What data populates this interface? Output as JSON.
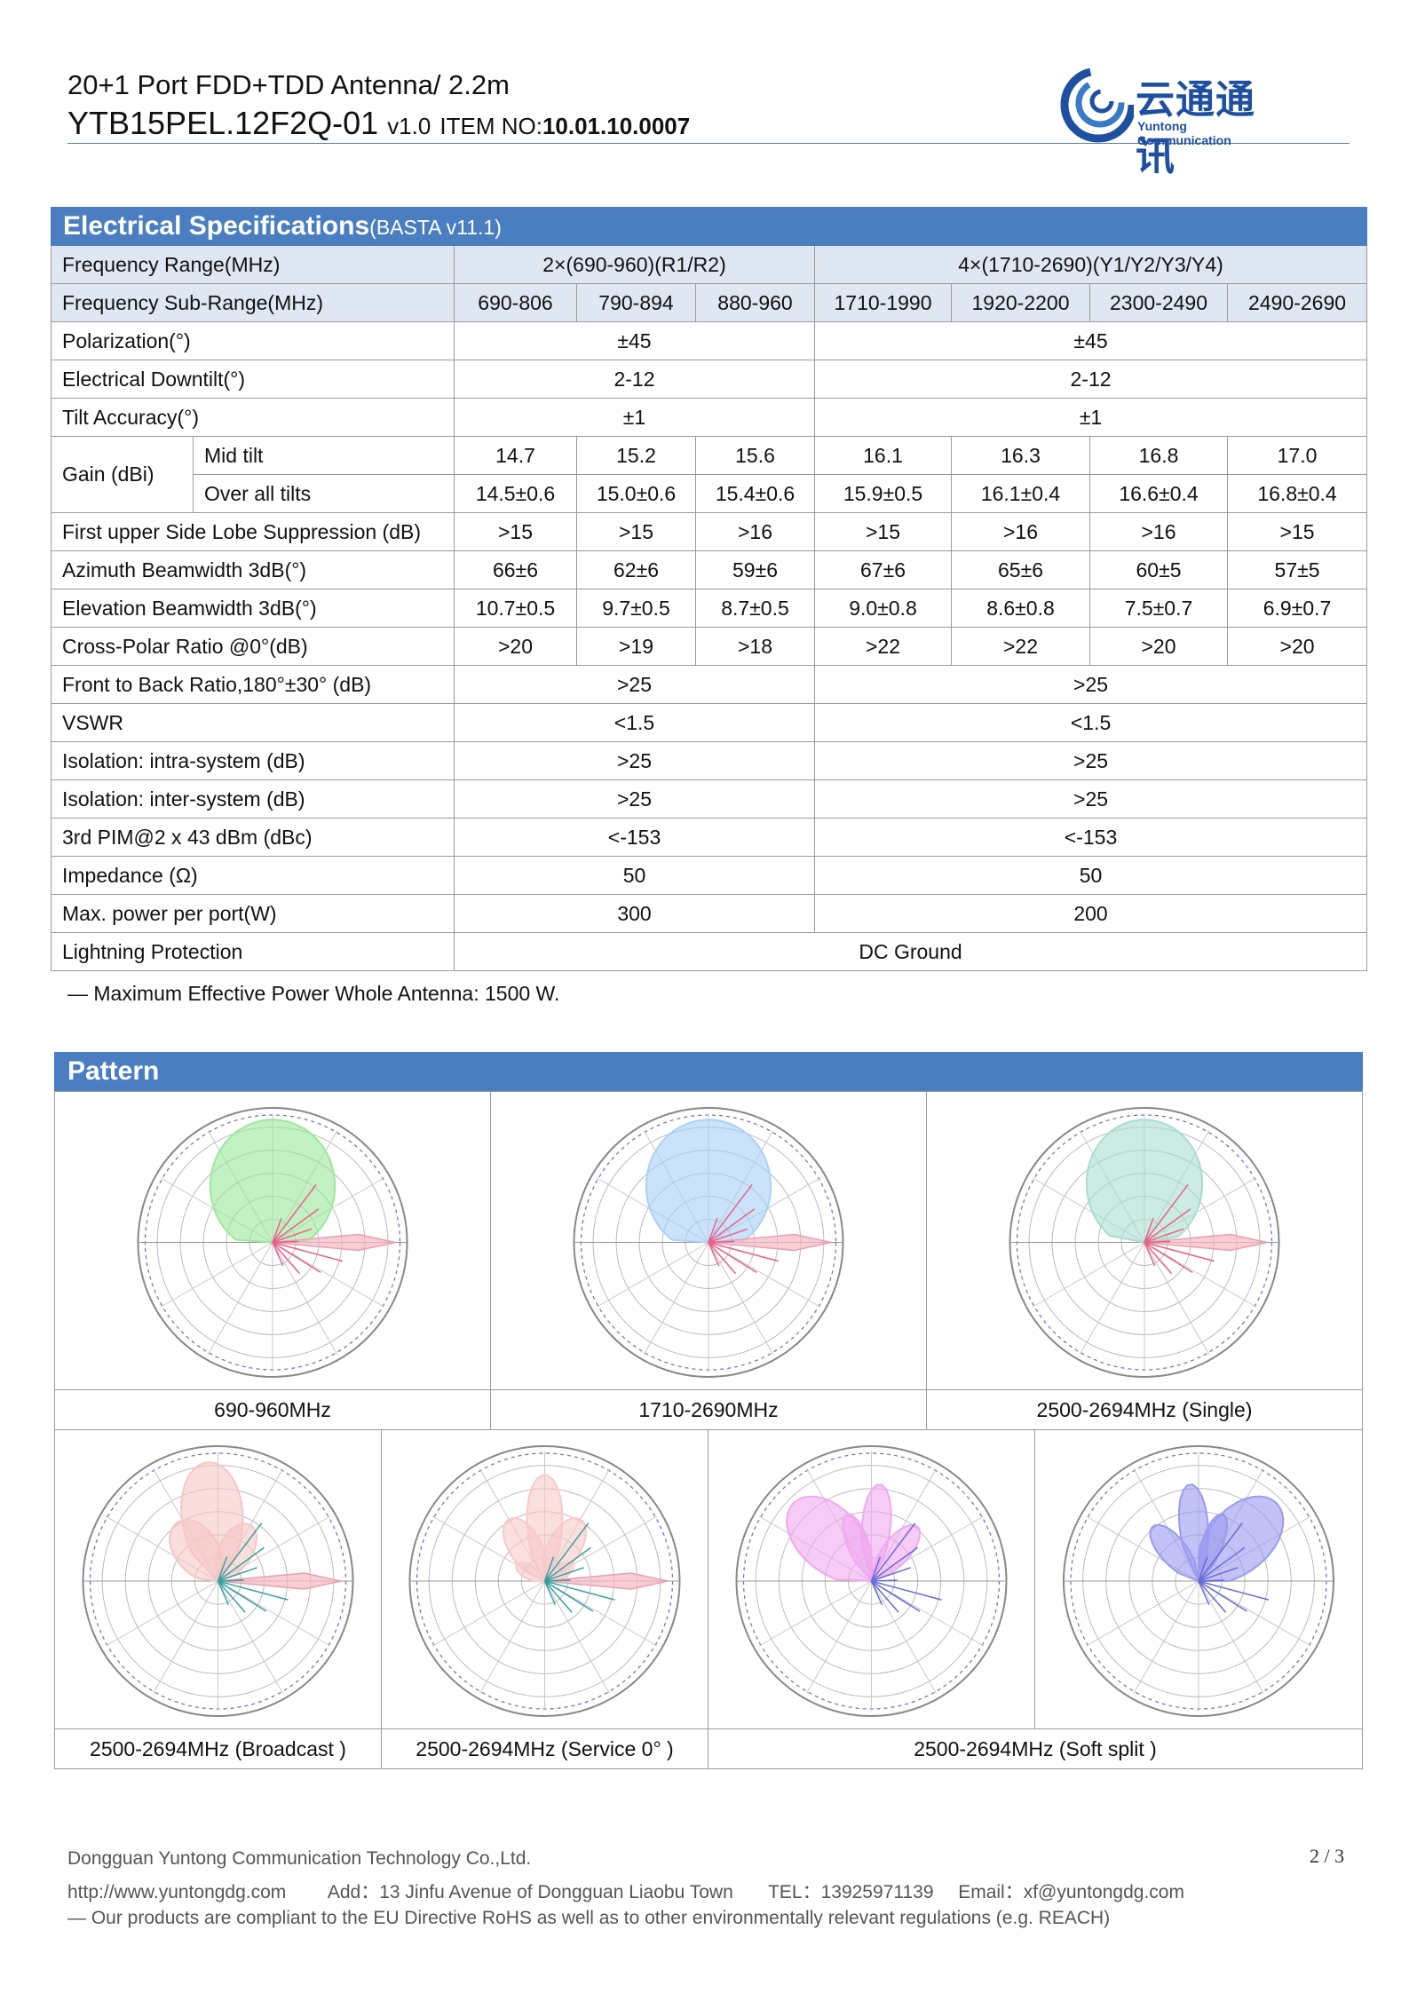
{
  "header": {
    "line1": "20+1 Port FDD+TDD Antenna/ 2.2m",
    "model": "YTB15PEL.12F2Q-01",
    "version": "v1.0",
    "item_label": "ITEM NO:",
    "item_no": "10.01.10.0007",
    "logo_cn": "云通通讯",
    "logo_en": "Yuntong Communication"
  },
  "spec": {
    "title": "Electrical Specifications",
    "title_suffix": "(BASTA v11.1)",
    "freq_label": "Frequency Range(MHz)",
    "freq_band1": "2×(690-960)(R1/R2)",
    "freq_band2": "4×(1710-2690)(Y1/Y2/Y3/Y4)",
    "subrange_label": "Frequency Sub-Range(MHz)",
    "subranges": [
      "690-806",
      "790-894",
      "880-960",
      "1710-1990",
      "1920-2200",
      "2300-2490",
      "2490-2690"
    ],
    "pol_label": "Polarization(°)",
    "pol1": "±45",
    "pol2": "±45",
    "downtilt_label": "Electrical Downtilt(°)",
    "downtilt1": "2-12",
    "downtilt2": "2-12",
    "tilt_acc_label": "Tilt Accuracy(°)",
    "tilt_acc1": "±1",
    "tilt_acc2": "±1",
    "gain_label": "Gain (dBi)",
    "gain_mid_label": "Mid tilt",
    "gain_mid": [
      "14.7",
      "15.2",
      "15.6",
      "16.1",
      "16.3",
      "16.8",
      "17.0"
    ],
    "gain_all_label": "Over all tilts",
    "gain_all": [
      "14.5±0.6",
      "15.0±0.6",
      "15.4±0.6",
      "15.9±0.5",
      "16.1±0.4",
      "16.6±0.4",
      "16.8±0.4"
    ],
    "sls_label": "First upper Side Lobe Suppression (dB)",
    "sls": [
      ">15",
      ">15",
      ">16",
      ">15",
      ">16",
      ">16",
      ">15"
    ],
    "az_label": "Azimuth Beamwidth 3dB(°)",
    "az": [
      "66±6",
      "62±6",
      "59±6",
      "67±6",
      "65±6",
      "60±5",
      "57±5"
    ],
    "el_label": "Elevation Beamwidth 3dB(°)",
    "el": [
      "10.7±0.5",
      "9.7±0.5",
      "8.7±0.5",
      "9.0±0.8",
      "8.6±0.8",
      "7.5±0.7",
      "6.9±0.7"
    ],
    "xpol_label": "Cross-Polar Ratio @0°(dB)",
    "xpol": [
      ">20",
      ">19",
      ">18",
      ">22",
      ">22",
      ">20",
      ">20"
    ],
    "ftb_label": "Front to Back Ratio,180°±30° (dB)",
    "ftb1": ">25",
    "ftb2": ">25",
    "vswr_label": "VSWR",
    "vswr1": "<1.5",
    "vswr2": "<1.5",
    "iso_intra_label": "Isolation: intra-system (dB)",
    "iso_intra1": ">25",
    "iso_intra2": ">25",
    "iso_inter_label": "Isolation: inter-system (dB)",
    "iso_inter1": ">25",
    "iso_inter2": ">25",
    "pim_label": "3rd PIM@2 x 43 dBm (dBc)",
    "pim1": "<-153",
    "pim2": "<-153",
    "imp_label": "Impedance (Ω)",
    "imp1": "50",
    "imp2": "50",
    "power_label": "Max. power per port(W)",
    "power1": "300",
    "power2": "200",
    "lightning_label": "Lightning Protection",
    "lightning": "DC Ground"
  },
  "note": "— Maximum Effective Power Whole Antenna: 1500 W.",
  "pattern": {
    "title": "Pattern",
    "captions": [
      "690-960MHz",
      "1710-2690MHz",
      "2500-2694MHz (Single)",
      "2500-2694MHz (Broadcast )",
      "2500-2694MHz (Service 0° )",
      "2500-2694MHz (Soft split )"
    ],
    "colors": [
      "#9be89b",
      "#a9d1f7",
      "#a8ddd0",
      "#f7c6c6",
      "#f7caca",
      "#f0a8f0",
      "#9a9af0"
    ]
  },
  "footer": {
    "company": "Dongguan Yuntong Communication Technology Co.,Ltd.",
    "website": "http://www.yuntongdg.com",
    "address": "Add：13 Jinfu Avenue of Dongguan Liaobu Town",
    "tel": "TEL：13925971139",
    "email": "Email：xf@yuntongdg.com",
    "compliance": "— Our products are compliant to the EU Directive RoHS as well as to other environmentally relevant regulations (e.g. REACH)",
    "page": "2 / 3"
  }
}
